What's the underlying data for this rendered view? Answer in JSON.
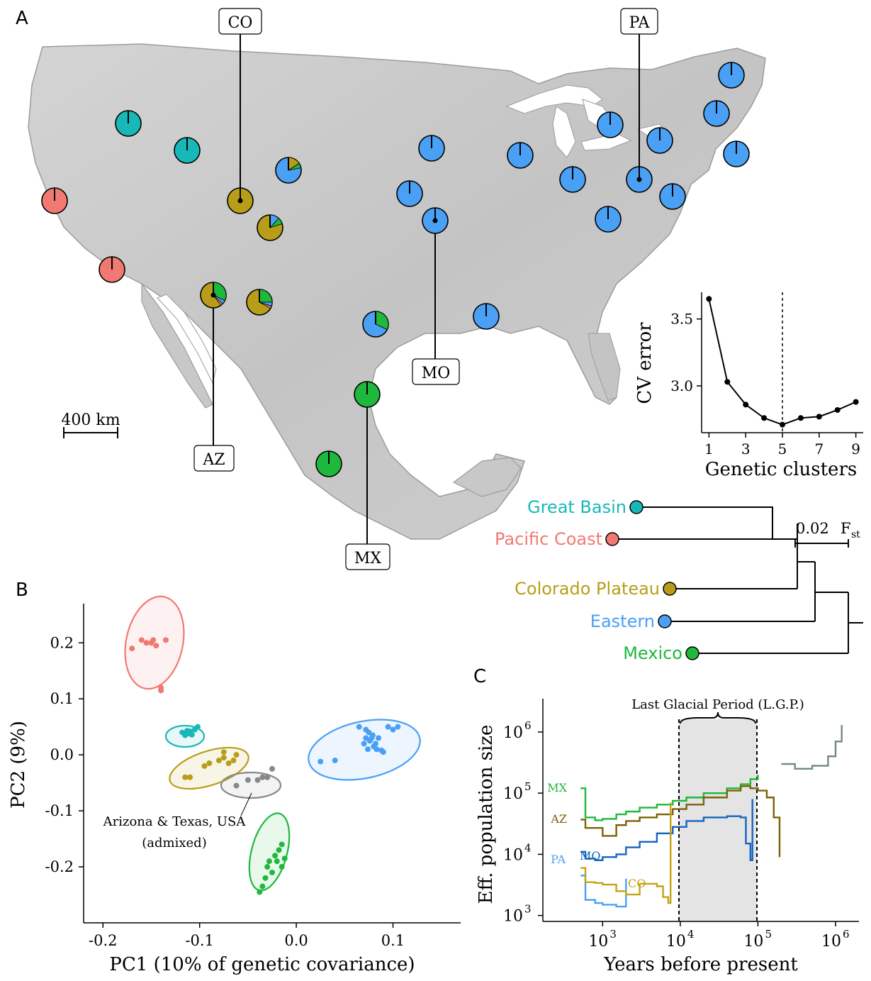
{
  "panels": {
    "a": "A",
    "b": "B",
    "c": "C"
  },
  "colors": {
    "great_basin": "#19b8b8",
    "pacific": "#f07a72",
    "colorado": "#b89e18",
    "eastern": "#4aa0f5",
    "mexico": "#1db83c",
    "admixed": "#888888",
    "map_land": "#c9c9c9"
  },
  "map": {
    "scale_label": "400 km",
    "site_labels": {
      "co": "CO",
      "pa": "PA",
      "mo": "MO",
      "az": "AZ",
      "mx": "MX"
    }
  },
  "cv_chart": {
    "title": "",
    "ylabel": "CV error",
    "xlabel": "Genetic clusters",
    "x_ticks": [
      "1",
      "3",
      "5",
      "7",
      "9"
    ],
    "y_ticks": [
      "3.0",
      "3.5"
    ]
  },
  "tree": {
    "labels": {
      "great_basin": "Great Basin",
      "pacific": "Pacific Coast",
      "colorado": "Colorado Plateau",
      "eastern": "Eastern",
      "mexico": "Mexico"
    },
    "scale_value": "0.02",
    "scale_unit": "F",
    "scale_sub": "st"
  },
  "pca": {
    "xlabel": "PC1 (10% of genetic covariance)",
    "ylabel": "PC2 (9%)",
    "x_ticks": [
      "-0.2",
      "-0.1",
      "0.0",
      "0.1"
    ],
    "y_ticks": [
      "0.2",
      "0.1",
      "0.0",
      "-0.1",
      "-0.2"
    ],
    "annotation_line1": "Arizona & Texas, USA",
    "annotation_line2": "(admixed)"
  },
  "psmc": {
    "xlabel": "Years before present",
    "ylabel": "Eff. population size",
    "period_label": "Last Glacial Period (L.G.P.)",
    "x_ticks": [
      "10",
      "10",
      "10",
      "10"
    ],
    "x_exps": [
      "3",
      "4",
      "5",
      "6"
    ],
    "y_ticks": [
      "10",
      "10",
      "10",
      "10"
    ],
    "y_exps": [
      "6",
      "5",
      "4",
      "3"
    ],
    "series_labels": {
      "mx": "MX",
      "az": "AZ",
      "pa": "PA",
      "mo": "MO",
      "co": "CO"
    }
  },
  "chart_data": [
    {
      "type": "line",
      "title": "",
      "xlabel": "Genetic clusters",
      "ylabel": "CV error",
      "x": [
        1,
        2,
        3,
        4,
        5,
        6,
        7,
        8,
        9
      ],
      "values": [
        3.65,
        3.03,
        2.86,
        2.76,
        2.71,
        2.76,
        2.77,
        2.82,
        2.88
      ],
      "xlim": [
        0.6,
        9.4
      ],
      "ylim": [
        2.65,
        3.7
      ],
      "marker_line_x": 5
    },
    {
      "type": "scatter",
      "title": "",
      "xlabel": "PC1 (10% of genetic covariance)",
      "ylabel": "PC2 (9%)",
      "xlim": [
        -0.22,
        0.17
      ],
      "ylim": [
        -0.3,
        0.27
      ],
      "series": [
        {
          "name": "Pacific Coast",
          "points": [
            [
              -0.17,
              0.19
            ],
            [
              -0.16,
              0.205
            ],
            [
              -0.155,
              0.2
            ],
            [
              -0.15,
              0.2
            ],
            [
              -0.145,
              0.195
            ],
            [
              -0.148,
              0.205
            ],
            [
              -0.135,
              0.205
            ],
            [
              -0.14,
              0.12
            ],
            [
              -0.14,
              0.115
            ]
          ]
        },
        {
          "name": "Great Basin",
          "points": [
            [
              -0.118,
              0.04
            ],
            [
              -0.115,
              0.035
            ],
            [
              -0.112,
              0.038
            ],
            [
              -0.11,
              0.042
            ],
            [
              -0.108,
              0.036
            ],
            [
              -0.105,
              0.045
            ],
            [
              -0.102,
              0.05
            ],
            [
              -0.113,
              0.043
            ]
          ]
        },
        {
          "name": "Colorado Plateau",
          "points": [
            [
              -0.115,
              -0.04
            ],
            [
              -0.11,
              -0.04
            ],
            [
              -0.095,
              -0.02
            ],
            [
              -0.09,
              -0.015
            ],
            [
              -0.08,
              -0.01
            ],
            [
              -0.075,
              0.005
            ],
            [
              -0.07,
              -0.015
            ],
            [
              -0.065,
              -0.01
            ],
            [
              -0.062,
              0.0
            ],
            [
              -0.075,
              -0.005
            ]
          ]
        },
        {
          "name": "Arizona & Texas, USA (admixed)",
          "points": [
            [
              -0.062,
              -0.055
            ],
            [
              -0.05,
              -0.045
            ],
            [
              -0.04,
              -0.045
            ],
            [
              -0.035,
              -0.04
            ],
            [
              -0.03,
              -0.04
            ],
            [
              -0.025,
              -0.025
            ]
          ]
        },
        {
          "name": "Mexico",
          "points": [
            [
              -0.038,
              -0.245
            ],
            [
              -0.035,
              -0.235
            ],
            [
              -0.032,
              -0.22
            ],
            [
              -0.03,
              -0.2
            ],
            [
              -0.028,
              -0.19
            ],
            [
              -0.025,
              -0.21
            ],
            [
              -0.022,
              -0.18
            ],
            [
              -0.02,
              -0.19
            ],
            [
              -0.018,
              -0.17
            ],
            [
              -0.015,
              -0.16
            ],
            [
              -0.015,
              -0.2
            ],
            [
              -0.012,
              -0.185
            ]
          ]
        },
        {
          "name": "Eastern",
          "points": [
            [
              0.025,
              -0.012
            ],
            [
              0.04,
              -0.01
            ],
            [
              0.065,
              0.05
            ],
            [
              0.07,
              0.02
            ],
            [
              0.072,
              0.03
            ],
            [
              0.074,
              0.01
            ],
            [
              0.075,
              0.04
            ],
            [
              0.078,
              0.03
            ],
            [
              0.08,
              0.015
            ],
            [
              0.082,
              0.02
            ],
            [
              0.085,
              0.03
            ],
            [
              0.088,
              0.008
            ],
            [
              0.09,
              0.005
            ],
            [
              0.095,
              0.05
            ],
            [
              0.1,
              0.045
            ],
            [
              0.105,
              0.05
            ],
            [
              0.072,
              0.045
            ],
            [
              0.076,
              0.025
            ],
            [
              0.079,
              0.035
            ],
            [
              0.083,
              0.01
            ]
          ]
        }
      ]
    },
    {
      "type": "line",
      "title": "",
      "xlabel": "Years before present",
      "ylabel": "Eff. population size",
      "x_scale": "log",
      "y_scale": "log",
      "xlim": [
        170,
        2000000
      ],
      "ylim": [
        800,
        3500000
      ],
      "shaded_period": [
        12000,
        115000
      ],
      "series": [
        {
          "name": "MX",
          "x": [
            520,
            600,
            800,
            1000,
            1500,
            2000,
            3000,
            5000,
            8000,
            12000,
            20000,
            40000,
            60000,
            80000,
            100000
          ],
          "y": [
            120000,
            40000,
            36000,
            38000,
            45000,
            50000,
            58000,
            65000,
            75000,
            85000,
            100000,
            120000,
            140000,
            170000,
            200000
          ]
        },
        {
          "name": "AZ",
          "x": [
            520,
            600,
            800,
            1000,
            1500,
            2000,
            3000,
            5000,
            8000,
            12000,
            20000,
            40000,
            60000,
            80000,
            100000,
            130000,
            160000,
            190000
          ],
          "y": [
            37000,
            27000,
            27000,
            20000,
            30000,
            35000,
            40000,
            45000,
            55000,
            65000,
            85000,
            110000,
            130000,
            120000,
            110000,
            85000,
            40000,
            9000
          ]
        },
        {
          "name": "MO",
          "x": [
            520,
            600,
            800,
            1000,
            1500,
            2000,
            3000,
            5000,
            8000,
            12000,
            20000,
            40000,
            60000,
            70000,
            80000,
            85000
          ],
          "y": [
            11000,
            8500,
            8000,
            9000,
            10000,
            13000,
            16000,
            22000,
            28000,
            35000,
            40000,
            42000,
            40000,
            15000,
            8000,
            80000
          ]
        },
        {
          "name": "PA",
          "x": [
            520,
            600,
            800,
            1000,
            1500,
            2000
          ],
          "y": [
            4500,
            1800,
            1600,
            1500,
            1400,
            4000
          ]
        },
        {
          "name": "CO",
          "x": [
            520,
            600,
            800,
            1000,
            1500,
            2000,
            3000,
            5000,
            6000,
            7000,
            7500
          ],
          "y": [
            6000,
            3500,
            3400,
            3200,
            2500,
            2200,
            3300,
            3000,
            2000,
            1600,
            70000
          ]
        },
        {
          "name": "",
          "x": [
            200000,
            300000,
            500000,
            800000,
            1000000,
            1200000
          ],
          "y": [
            300000,
            250000,
            280000,
            400000,
            700000,
            1300000
          ]
        }
      ]
    }
  ]
}
